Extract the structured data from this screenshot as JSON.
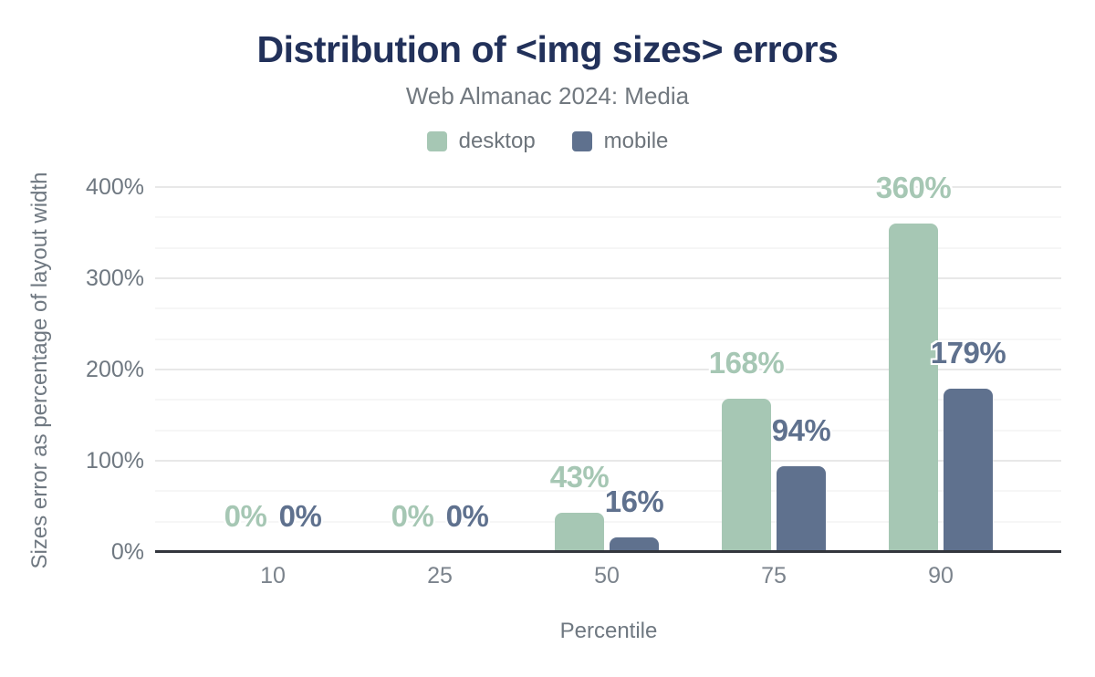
{
  "chart": {
    "title": "Distribution of <img sizes> errors",
    "subtitle": "Web Almanac 2024: Media",
    "legend": [
      {
        "label": "desktop",
        "color": "#a6c7b4"
      },
      {
        "label": "mobile",
        "color": "#5f718e"
      }
    ],
    "colors": {
      "title": "#22315a",
      "muted_text": "#6f7881",
      "axis_line": "#33363d",
      "gridline_major": "#e8e8e8",
      "gridline_minor": "#f6f6f6"
    }
  },
  "chart_data": {
    "type": "bar",
    "title": "Distribution of <img sizes> errors",
    "subtitle": "Web Almanac 2024: Media",
    "xlabel": "Percentile",
    "ylabel": "Sizes error as percentage of layout width",
    "categories": [
      "10",
      "25",
      "50",
      "75",
      "90"
    ],
    "series": [
      {
        "name": "desktop",
        "color": "#a6c7b4",
        "values": [
          0,
          0,
          43,
          168,
          360
        ],
        "labels": [
          "0%",
          "0%",
          "43%",
          "168%",
          "360%"
        ]
      },
      {
        "name": "mobile",
        "color": "#5f718e",
        "values": [
          0,
          0,
          16,
          94,
          179
        ],
        "labels": [
          "0%",
          "0%",
          "16%",
          "94%",
          "179%"
        ]
      }
    ],
    "ylim": [
      0,
      400
    ],
    "y_ticks": [
      {
        "value": 0,
        "label": "0%"
      },
      {
        "value": 100,
        "label": "100%"
      },
      {
        "value": 200,
        "label": "200%"
      },
      {
        "value": 300,
        "label": "300%"
      },
      {
        "value": 400,
        "label": "400%"
      }
    ],
    "grid": "horizontal; major every 100%, minor every 33.3%",
    "legend_position": "top",
    "data_labels": true
  }
}
